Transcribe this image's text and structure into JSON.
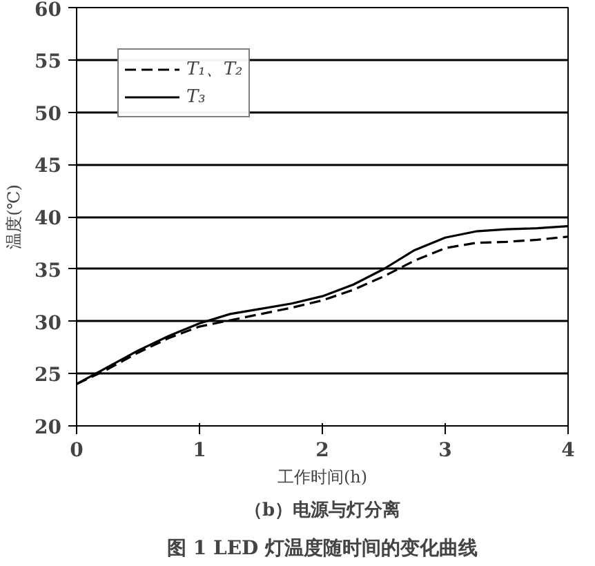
{
  "chart_data": {
    "type": "line",
    "title": "图 1 LED 灯温度随时间的变化曲线",
    "subtitle": "（b）电源与灯分离",
    "xlabel": "工作时间(h)",
    "ylabel": "温度(℃)",
    "x": [
      0,
      0.25,
      0.5,
      0.75,
      1,
      1.25,
      1.5,
      1.75,
      2,
      2.25,
      2.5,
      2.75,
      3,
      3.25,
      3.5,
      3.75,
      4
    ],
    "series": [
      {
        "name": "T₁、T₂",
        "color": "#000000",
        "line_style": "dashed",
        "values": [
          24,
          25.4,
          27,
          28.4,
          29.5,
          30.1,
          30.7,
          31.3,
          32.0,
          33.0,
          34.3,
          35.8,
          37.0,
          37.5,
          37.6,
          37.8,
          38.1
        ]
      },
      {
        "name": "T₃",
        "color": "#000000",
        "line_style": "solid",
        "values": [
          24,
          25.6,
          27.2,
          28.6,
          29.8,
          30.7,
          31.2,
          31.7,
          32.4,
          33.5,
          35.0,
          36.8,
          38.0,
          38.6,
          38.8,
          38.9,
          39.1
        ]
      }
    ],
    "xlim": [
      0,
      4
    ],
    "ylim": [
      20,
      60
    ],
    "xticks": [
      0,
      1,
      2,
      3,
      4
    ],
    "yticks": [
      20,
      25,
      30,
      35,
      40,
      45,
      50,
      55,
      60
    ],
    "grid": "y",
    "legend": "top left",
    "marker": "none"
  }
}
